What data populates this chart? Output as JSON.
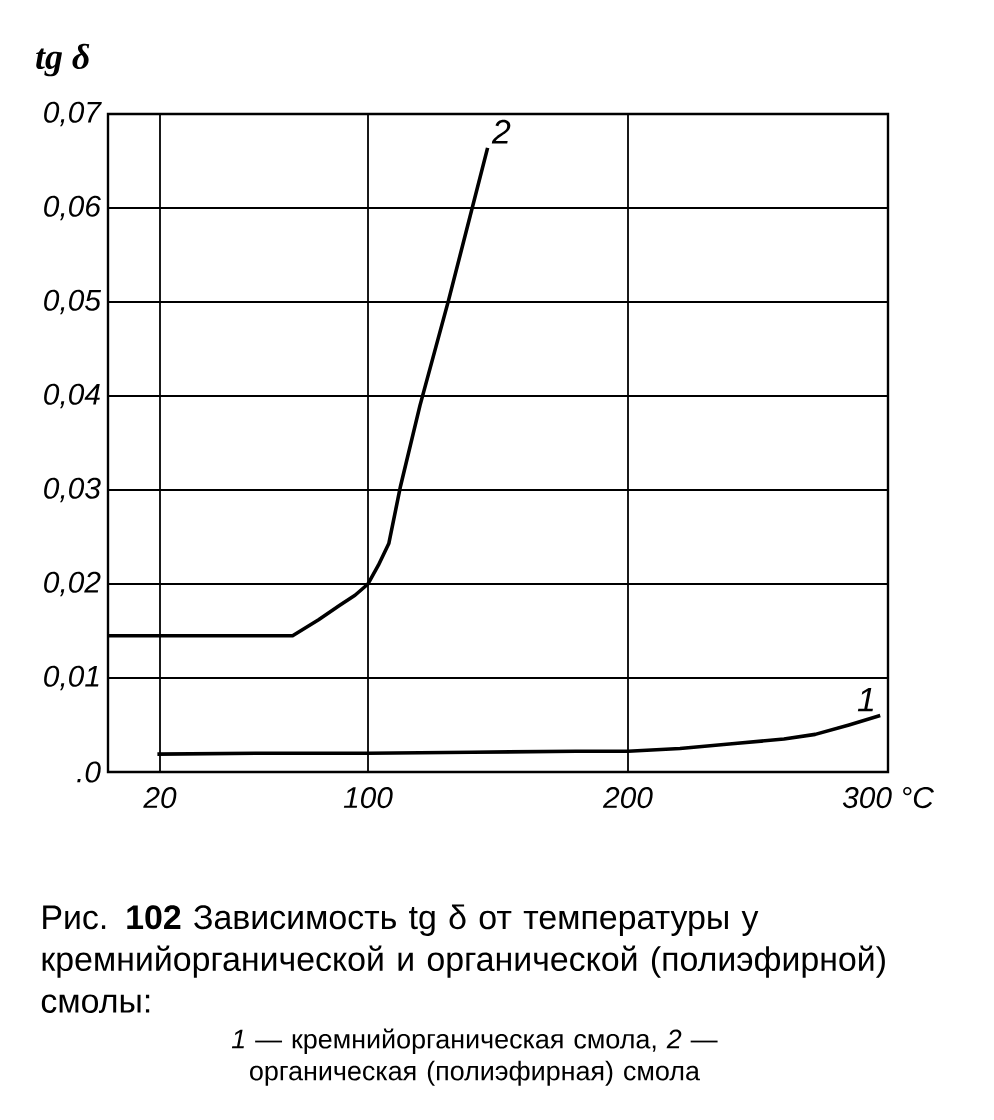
{
  "chart_data": {
    "type": "line",
    "ylabel": "tg δ",
    "xlim": [
      0,
      300
    ],
    "ylim": [
      0,
      0.07
    ],
    "xticks": [
      20,
      100,
      200,
      {
        "value": 300,
        "label": "300 °C"
      }
    ],
    "yticks": [
      {
        "value": 0,
        "label": ".0"
      },
      {
        "value": 0.01,
        "label": "0,01"
      },
      {
        "value": 0.02,
        "label": "0,02"
      },
      {
        "value": 0.03,
        "label": "0,03"
      },
      {
        "value": 0.04,
        "label": "0,04"
      },
      {
        "value": 0.05,
        "label": "0,05"
      },
      {
        "value": 0.06,
        "label": "0,06"
      },
      {
        "value": 0.07,
        "label": "0,07"
      }
    ],
    "grid": true,
    "line_style": "solid",
    "series": [
      {
        "name": "1",
        "color": "#000000",
        "x": [
          19,
          60,
          100,
          140,
          180,
          200,
          220,
          240,
          260,
          272,
          285,
          297
        ],
        "values": [
          0.0019,
          0.002,
          0.002,
          0.0021,
          0.0022,
          0.0022,
          0.0025,
          0.003,
          0.0035,
          0.004,
          0.005,
          0.006
        ]
      },
      {
        "name": "2",
        "color": "#000000",
        "x": [
          0,
          40,
          71,
          81,
          89,
          95,
          100,
          104,
          108,
          112.5,
          120,
          131,
          146
        ],
        "values": [
          0.0145,
          0.0145,
          0.0145,
          0.0162,
          0.0177,
          0.0188,
          0.02,
          0.022,
          0.0243,
          0.0304,
          0.039,
          0.0502,
          0.0664
        ]
      }
    ],
    "annotations": [
      "Рис. **102** Зависимость tg δ от температуры у кремнийорганической и органической (полиэфирной) смолы:",
      "*1* — кремнийорганическая смола, *2* — органическая (полиэфирная) смола"
    ]
  }
}
